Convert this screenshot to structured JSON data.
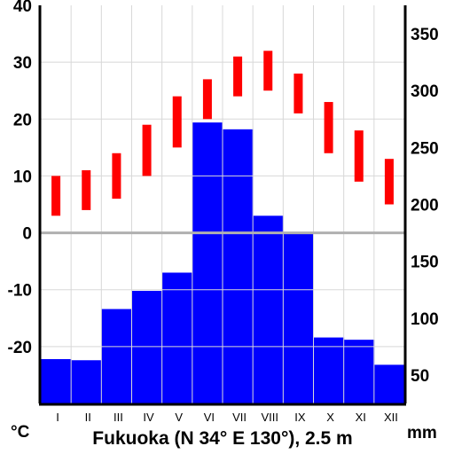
{
  "chart_data": {
    "type": "climate-diagram",
    "title": "Fukuoka (N 34° E 130°), 2.5 m",
    "categories": [
      "I",
      "II",
      "III",
      "IV",
      "V",
      "VI",
      "VII",
      "VIII",
      "IX",
      "X",
      "XI",
      "XII"
    ],
    "left_axis": {
      "unit": "°C",
      "ticks": [
        "40",
        "30",
        "20",
        "10",
        "0",
        "-10",
        "-20"
      ],
      "ylim": [
        -30,
        40
      ]
    },
    "right_axis": {
      "unit": "mm",
      "ticks": [
        "350",
        "300",
        "250",
        "200",
        "150",
        "100",
        "50"
      ],
      "ylim": [
        25,
        375
      ]
    },
    "series": [
      {
        "kind": "bar",
        "axis": "right",
        "color": "#0000ff",
        "values": [
          64,
          63,
          108,
          124,
          140,
          272,
          266,
          190,
          175,
          83,
          81,
          59
        ]
      },
      {
        "kind": "range",
        "axis": "left",
        "color": "#ff0000",
        "low": [
          3,
          4,
          6,
          10,
          15,
          20,
          24,
          25,
          21,
          14,
          9,
          5
        ],
        "high": [
          10,
          11,
          14,
          19,
          24,
          27,
          31,
          32,
          28,
          23,
          18,
          13
        ]
      }
    ],
    "zero_line_color": "#b0b0b0",
    "grid": true
  }
}
